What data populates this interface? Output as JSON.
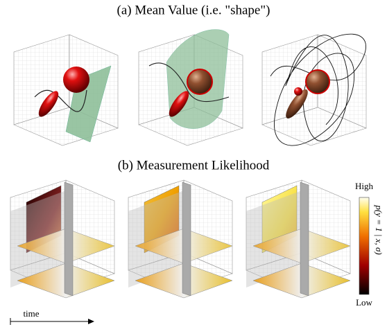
{
  "panel_a": {
    "title": "(a) Mean Value (i.e. \"shape\")"
  },
  "panel_b": {
    "title": "(b) Measurement Likelihood",
    "colorbar": {
      "high": "High",
      "low": "Low",
      "label": "p(y = 1 | x, σ)"
    }
  },
  "time_axis": {
    "label": "time"
  }
}
